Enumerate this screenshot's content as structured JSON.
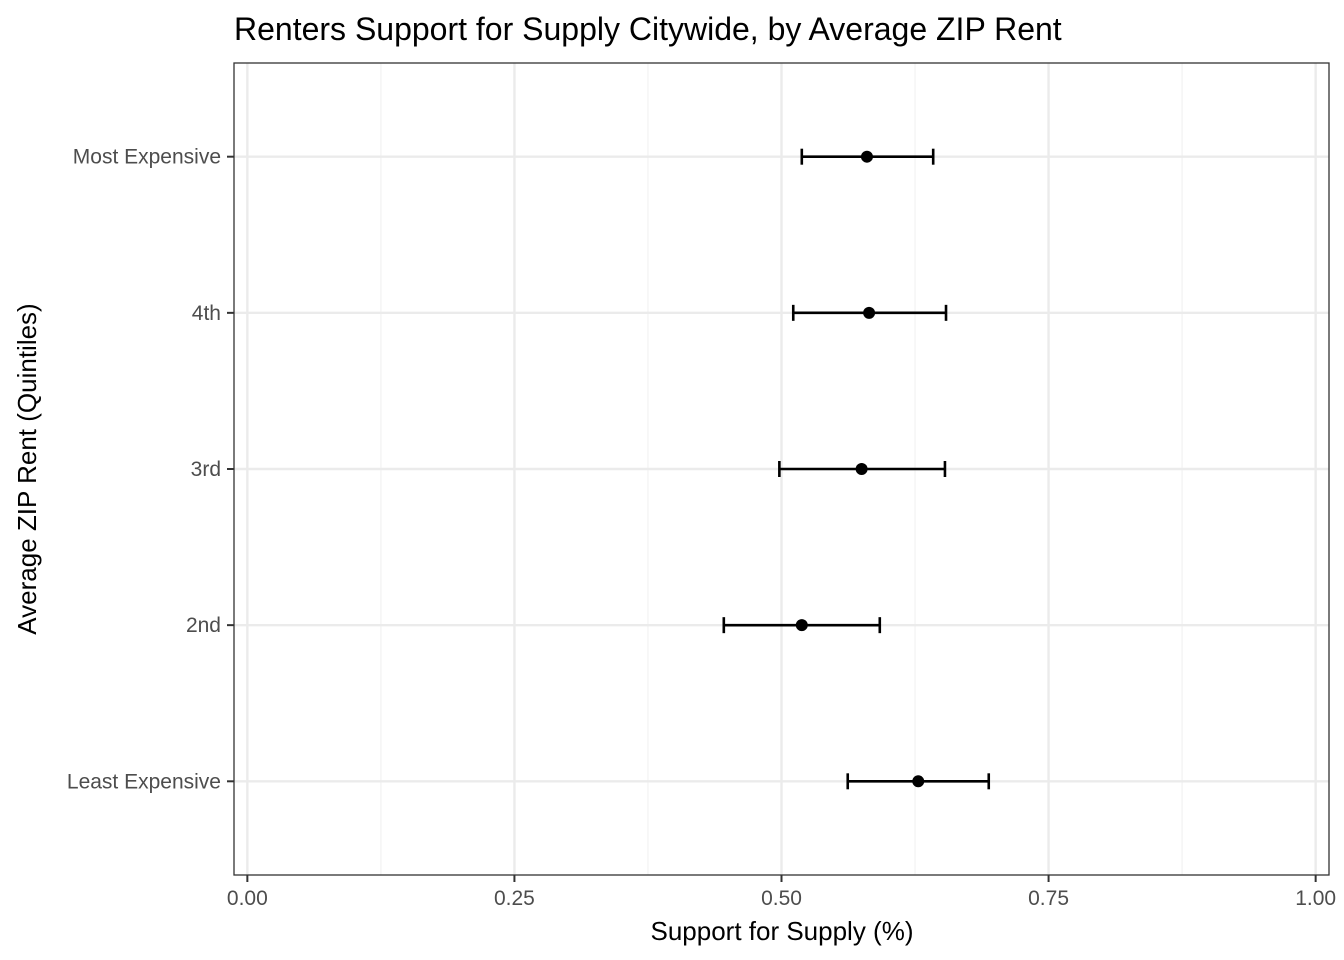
{
  "chart_data": {
    "type": "scatter",
    "title": "Renters Support for Supply Citywide, by Average ZIP Rent",
    "xlabel": "Support for Supply (%)",
    "ylabel": "Average ZIP Rent (Quintiles)",
    "xlim": [
      -0.0125,
      1.0125
    ],
    "x_ticks": [
      0.0,
      0.25,
      0.5,
      0.75,
      1.0
    ],
    "x_tick_labels": [
      "0.00",
      "0.25",
      "0.50",
      "0.75",
      "1.00"
    ],
    "x_minor_ticks": [
      0.125,
      0.375,
      0.625,
      0.875
    ],
    "categories": [
      "Least Expensive",
      "2nd",
      "3rd",
      "4th",
      "Most Expensive"
    ],
    "grid": true,
    "points": [
      {
        "category": "Least Expensive",
        "estimate": 0.628,
        "lower": 0.562,
        "upper": 0.694
      },
      {
        "category": "2nd",
        "estimate": 0.519,
        "lower": 0.446,
        "upper": 0.592
      },
      {
        "category": "3rd",
        "estimate": 0.575,
        "lower": 0.498,
        "upper": 0.653
      },
      {
        "category": "4th",
        "estimate": 0.582,
        "lower": 0.511,
        "upper": 0.654
      },
      {
        "category": "Most Expensive",
        "estimate": 0.58,
        "lower": 0.519,
        "upper": 0.642
      }
    ],
    "colors": {
      "point": "#000000",
      "panel_border": "#333333",
      "grid_major": "#ebebeb",
      "grid_minor": "#f2f2f2",
      "tick_label": "#4d4d4d"
    }
  }
}
